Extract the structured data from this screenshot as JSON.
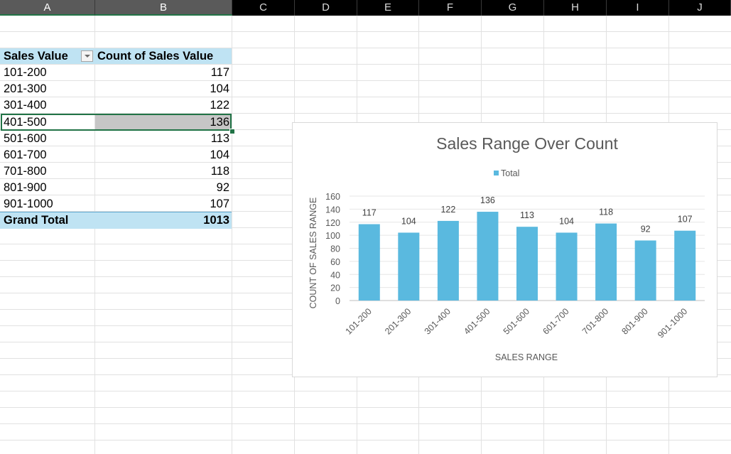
{
  "columns": [
    "A",
    "B",
    "C",
    "D",
    "E",
    "F",
    "G",
    "H",
    "I",
    "J"
  ],
  "pivot": {
    "header_row": "Sales Value",
    "header_values": "Count of Sales Value",
    "rows": [
      {
        "label": "101-200",
        "value": "117"
      },
      {
        "label": "201-300",
        "value": "104"
      },
      {
        "label": "301-400",
        "value": "122"
      },
      {
        "label": "401-500",
        "value": "136"
      },
      {
        "label": "501-600",
        "value": "113"
      },
      {
        "label": "601-700",
        "value": "104"
      },
      {
        "label": "701-800",
        "value": "118"
      },
      {
        "label": "801-900",
        "value": "92"
      },
      {
        "label": "901-1000",
        "value": "107"
      }
    ],
    "total_label": "Grand Total",
    "total_value": "1013"
  },
  "chart_data": {
    "type": "bar",
    "title": "Sales Range Over Count",
    "legend": "Total",
    "legend_position": "top",
    "xlabel": "SALES RANGE",
    "ylabel": "COUNT OF SALES RANGE",
    "categories": [
      "101-200",
      "201-300",
      "301-400",
      "401-500",
      "501-600",
      "601-700",
      "701-800",
      "801-900",
      "901-1000"
    ],
    "series": [
      {
        "name": "Total",
        "values": [
          117,
          104,
          122,
          136,
          113,
          104,
          118,
          92,
          107
        ]
      }
    ],
    "ylim": [
      0,
      160
    ],
    "yticks": [
      0,
      20,
      40,
      60,
      80,
      100,
      120,
      140,
      160
    ],
    "grid": true,
    "bar_color": "#5ab9df"
  }
}
